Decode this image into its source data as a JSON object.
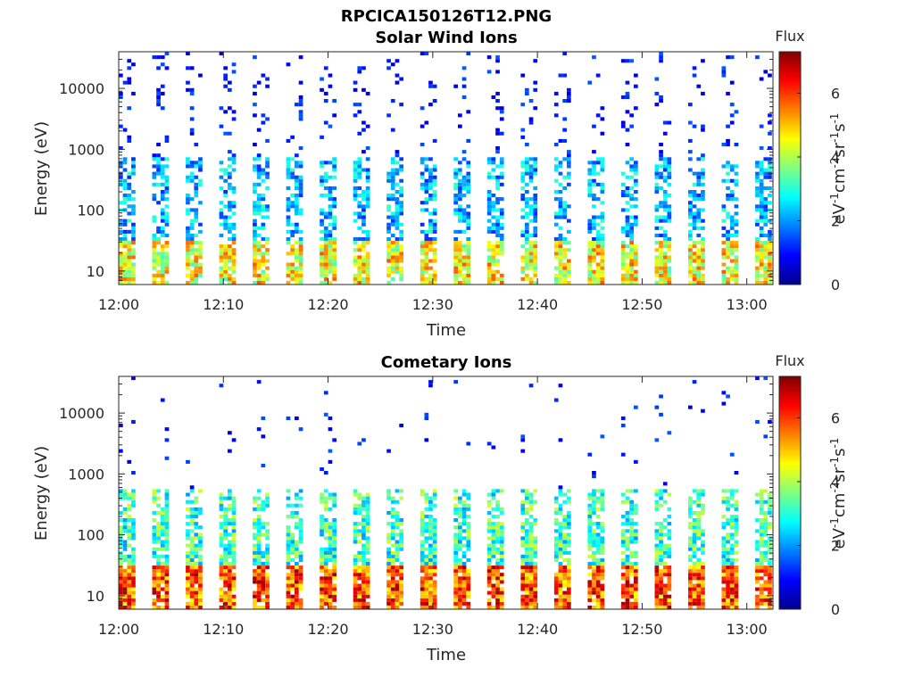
{
  "figure": {
    "title": "RPCICA150126T12.PNG"
  },
  "chart_data": [
    {
      "type": "heatmap",
      "title": "Solar Wind Ions",
      "xlabel": "Time",
      "ylabel": "Energy (eV)",
      "xlim": [
        "12:00",
        "13:02.5"
      ],
      "ylim": [
        6,
        40000
      ],
      "yscale": "log",
      "x_ticks": [
        "12:00",
        "12:10",
        "12:20",
        "12:30",
        "12:40",
        "12:50",
        "13:00"
      ],
      "y_ticks": [
        "10",
        "100",
        "1000",
        "10000"
      ],
      "colorbar": {
        "title": "Flux",
        "label": "eV-1cm-2sr-1s-1",
        "range": [
          0,
          7.3
        ],
        "ticks": [
          "0",
          "2",
          "4",
          "6"
        ]
      },
      "scan_period_min": 3.2,
      "pattern": {
        "low_energy_band": {
          "energy_eV": [
            6,
            30
          ],
          "flux": 5.0
        },
        "solar_wind_peak": {
          "energy_eV": [
            80,
            700
          ],
          "flux": 2.5
        },
        "high_energy_noise": {
          "energy_eV": [
            1000,
            40000
          ],
          "flux": 0.8
        }
      }
    },
    {
      "type": "heatmap",
      "title": "Cometary Ions",
      "xlabel": "Time",
      "ylabel": "Energy (eV)",
      "xlim": [
        "12:00",
        "13:02.5"
      ],
      "ylim": [
        6,
        40000
      ],
      "yscale": "log",
      "x_ticks": [
        "12:00",
        "12:10",
        "12:20",
        "12:30",
        "12:40",
        "12:50",
        "13:00"
      ],
      "y_ticks": [
        "10",
        "100",
        "1000",
        "10000"
      ],
      "colorbar": {
        "title": "Flux",
        "label": "eV-1cm-2sr-1s-1",
        "range": [
          0,
          7.3
        ],
        "ticks": [
          "0",
          "2",
          "4",
          "6"
        ]
      },
      "scan_period_min": 3.2,
      "pattern": {
        "low_energy_band": {
          "energy_eV": [
            6,
            30
          ],
          "flux": 6.5
        },
        "mid_band": {
          "energy_eV": [
            30,
            500
          ],
          "flux": 3.0
        },
        "sparse_high": {
          "energy_eV": [
            500,
            30000
          ],
          "flux": 1.0
        }
      }
    }
  ]
}
